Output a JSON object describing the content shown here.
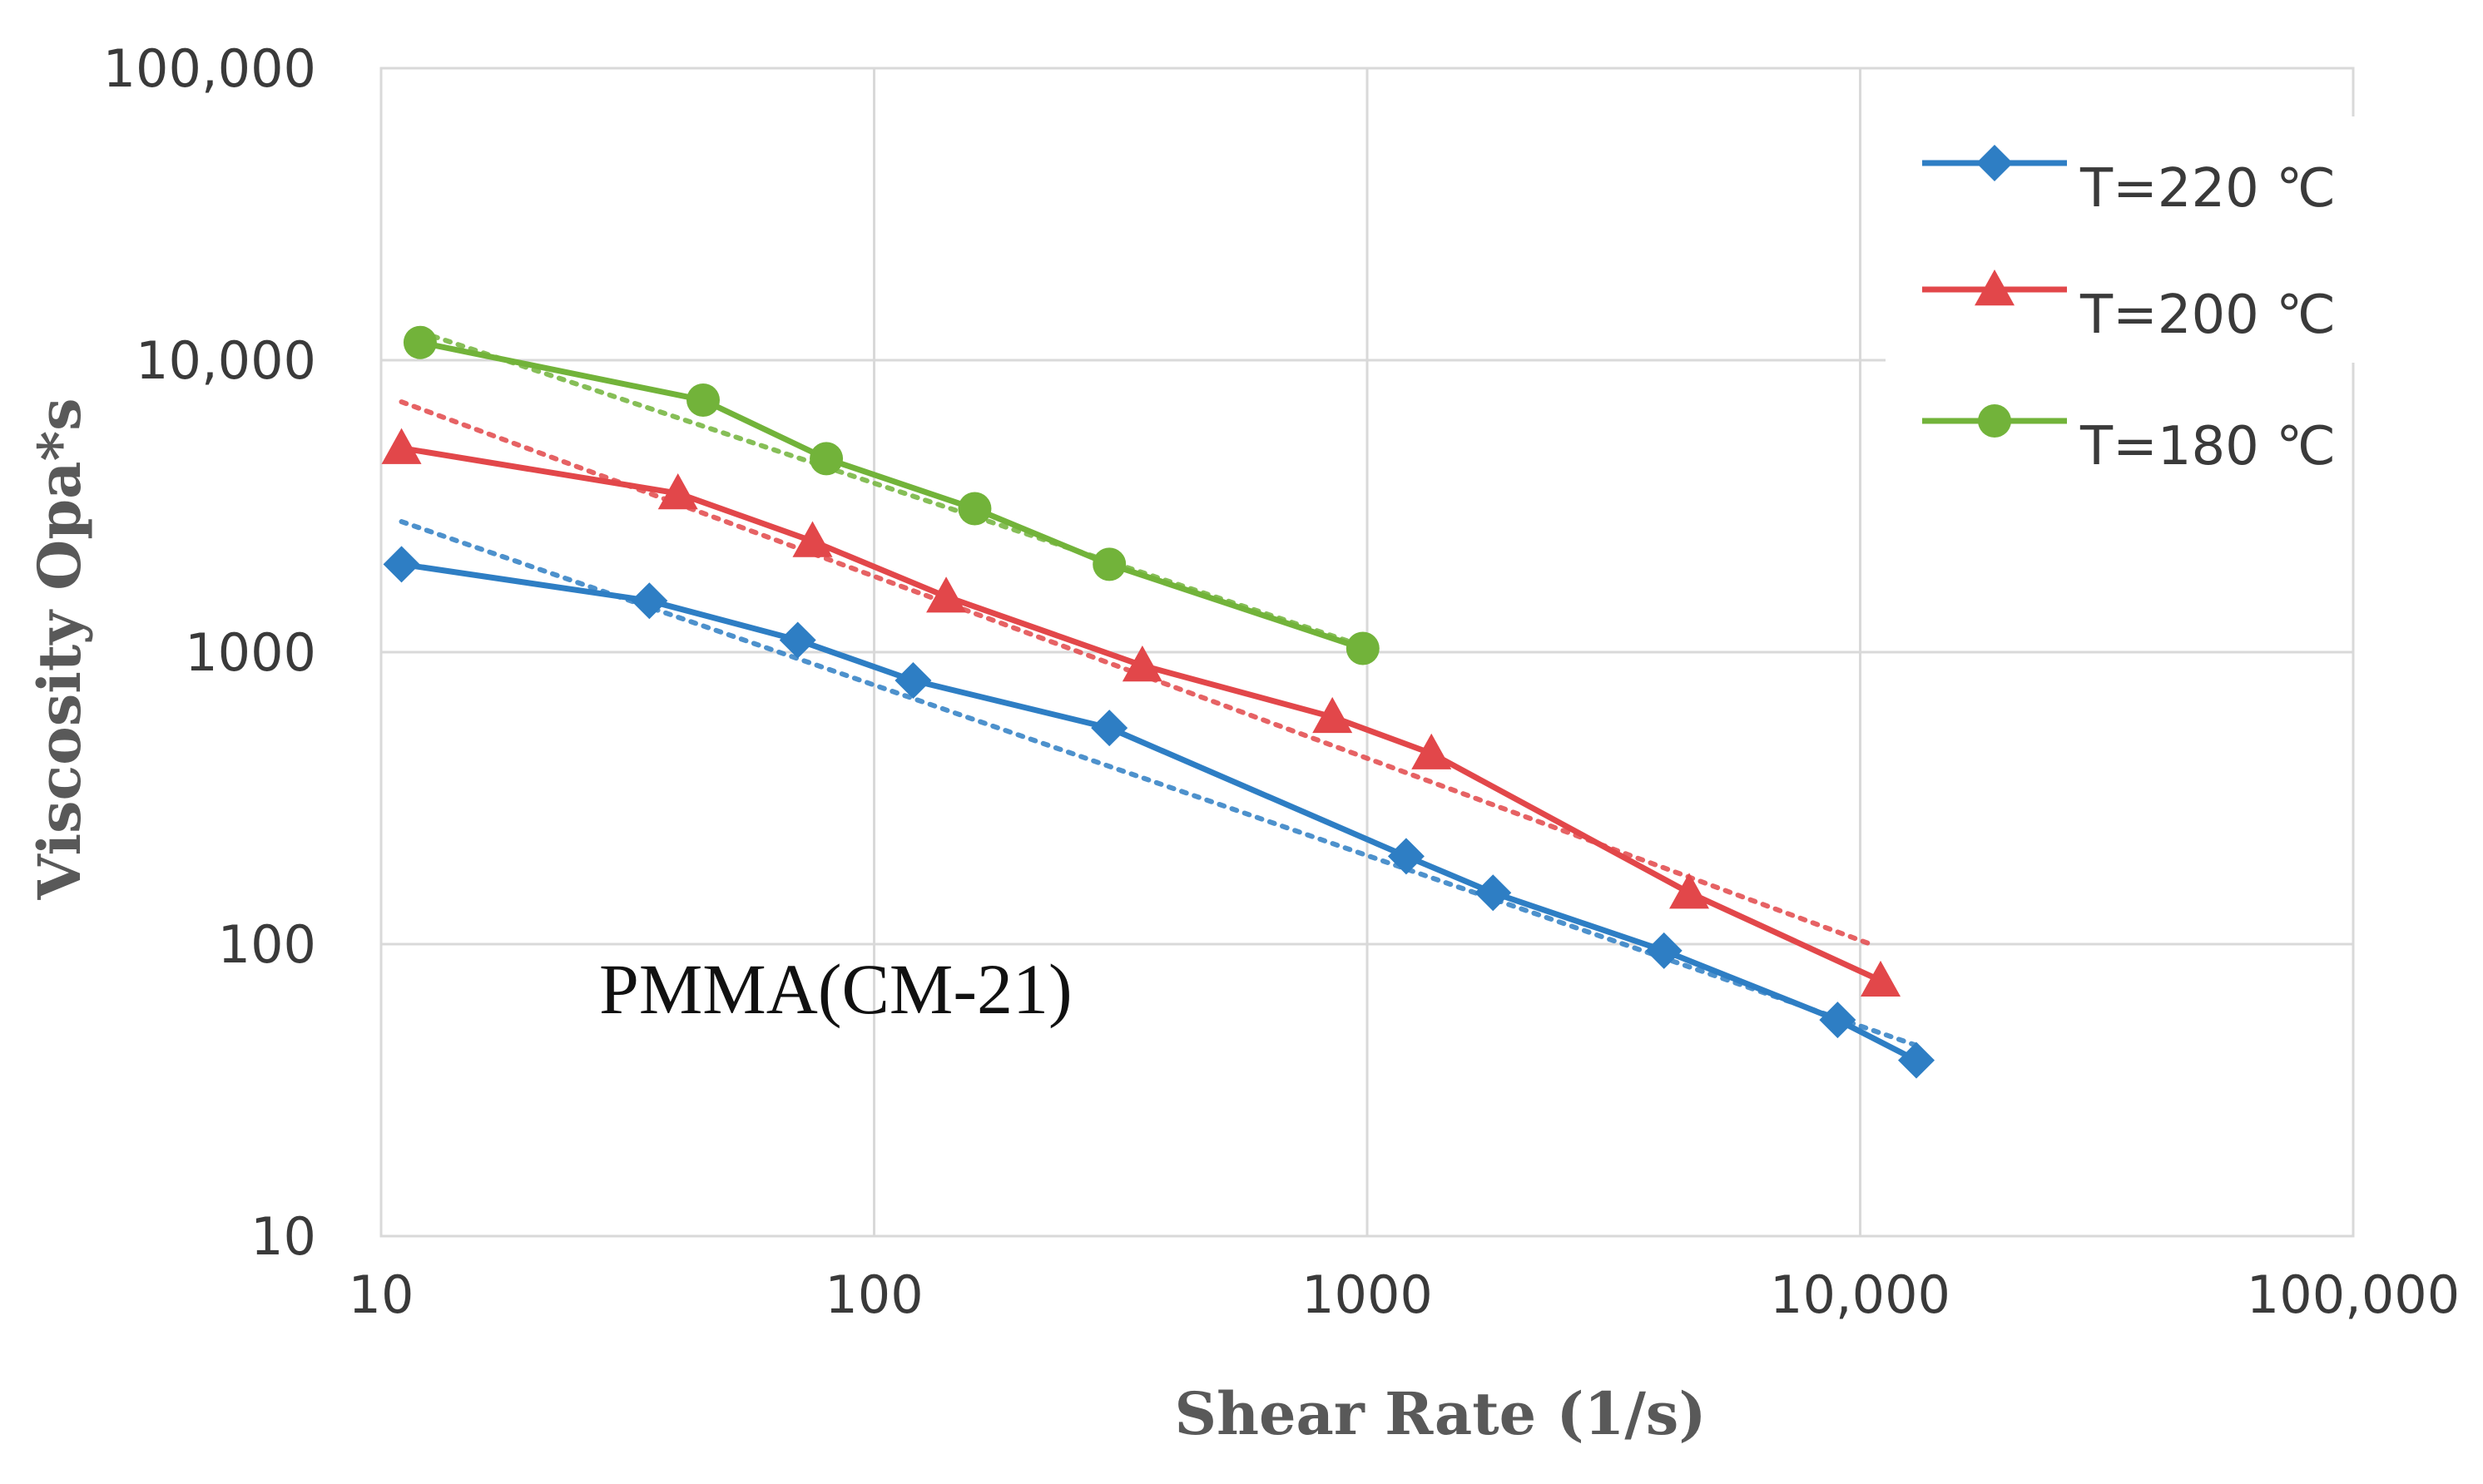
{
  "chart_data": {
    "type": "line",
    "title": "",
    "xlabel": "Shear Rate (1/s)",
    "ylabel": "Viscosity Opa*s",
    "xscale": "log",
    "yscale": "log",
    "xlim": [
      10,
      100000
    ],
    "ylim": [
      10,
      100000
    ],
    "x_ticks": [
      10,
      100,
      1000,
      10000,
      100000
    ],
    "x_tick_labels": [
      "10",
      "100",
      "1000",
      "10,000",
      "100,000"
    ],
    "y_ticks": [
      10,
      100,
      1000,
      10000,
      100000
    ],
    "y_tick_labels": [
      "10",
      "100",
      "1000",
      "10,000",
      "100,000"
    ],
    "grid": true,
    "legend_position": "top-right",
    "annotation": "PMMA(CM-21)",
    "series": [
      {
        "name": "T=220 ℃",
        "color": "#2E7EC4",
        "marker": "diamond",
        "x": [
          11,
          35,
          70,
          120,
          300,
          1200,
          1800,
          4000,
          9000,
          13000
        ],
        "y": [
          2000,
          1500,
          1100,
          800,
          550,
          200,
          150,
          95,
          55,
          40
        ],
        "trend": {
          "x": [
            11,
            13000
          ],
          "y": [
            2800,
            45
          ]
        }
      },
      {
        "name": "T=200 ℃",
        "color": "#E2474A",
        "marker": "triangle",
        "x": [
          11,
          40,
          75,
          140,
          350,
          850,
          1350,
          4500,
          11000
        ],
        "y": [
          5000,
          3500,
          2400,
          1550,
          900,
          600,
          450,
          150,
          75
        ],
        "trend": {
          "x": [
            11,
            10500
          ],
          "y": [
            7200,
            100
          ]
        }
      },
      {
        "name": "T=180 ℃",
        "color": "#72B33A",
        "marker": "circle",
        "x": [
          12,
          45,
          80,
          160,
          300,
          980
        ],
        "y": [
          11500,
          7300,
          4600,
          3100,
          2000,
          1030
        ],
        "trend": {
          "x": [
            12,
            980
          ],
          "y": [
            12500,
            1050
          ]
        }
      }
    ]
  }
}
